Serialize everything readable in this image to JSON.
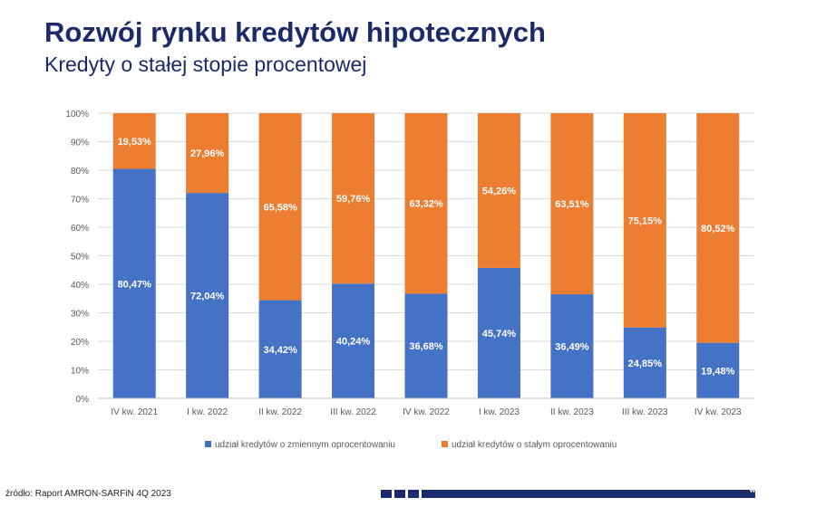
{
  "header": {
    "title": "Rozwój rynku kredytów hipotecznych",
    "subtitle": "Kredyty o stałej stopie procentowej"
  },
  "footer": {
    "source": "źródło: Raport AMRON-SARFiN 4Q 2023",
    "site": "www.zbp.pl"
  },
  "colors": {
    "variable": "#4472c4",
    "fixed": "#ed7d31",
    "brand": "#1b2a6b"
  },
  "chart_data": {
    "type": "bar",
    "stacked": true,
    "categories": [
      "IV kw. 2021",
      "I kw. 2022",
      "II kw. 2022",
      "III kw. 2022",
      "IV kw. 2022",
      "I kw. 2023",
      "II kw. 2023",
      "III kw. 2023",
      "IV kw. 2023"
    ],
    "series": [
      {
        "name": "udział kredytów o zmiennym oprocentowaniu",
        "color": "#4472c4",
        "values": [
          80.47,
          72.04,
          34.42,
          40.24,
          36.68,
          45.74,
          36.49,
          24.85,
          19.48
        ],
        "labels": [
          "80,47%",
          "72,04%",
          "34,42%",
          "40,24%",
          "36,68%",
          "45,74%",
          "36,49%",
          "24,85%",
          "19,48%"
        ]
      },
      {
        "name": "udział kredytów o stałym oprocentowaniu",
        "color": "#ed7d31",
        "values": [
          19.53,
          27.96,
          65.58,
          59.76,
          63.32,
          54.26,
          63.51,
          75.15,
          80.52
        ],
        "labels": [
          "19,53%",
          "27,96%",
          "65,58%",
          "59,76%",
          "63,32%",
          "54,26%",
          "63,51%",
          "75,15%",
          "80,52%"
        ]
      }
    ],
    "yticks": [
      "0%",
      "10%",
      "20%",
      "30%",
      "40%",
      "50%",
      "60%",
      "70%",
      "80%",
      "90%",
      "100%"
    ],
    "ylim": [
      0,
      100
    ],
    "grid": true,
    "legend": "bottom"
  }
}
